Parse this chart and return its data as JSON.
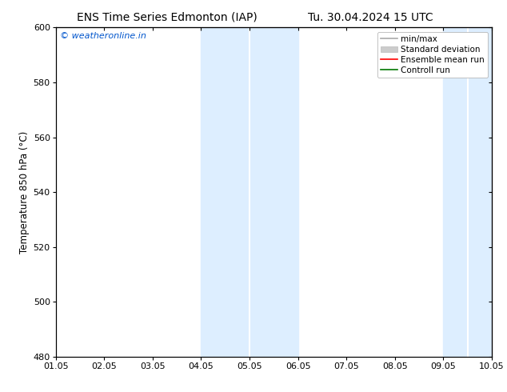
{
  "title_left": "ENS Time Series Edmonton (IAP)",
  "title_right": "Tu. 30.04.2024 15 UTC",
  "ylabel": "Temperature 850 hPa (°C)",
  "xlabel_ticks": [
    "01.05",
    "02.05",
    "03.05",
    "04.05",
    "05.05",
    "06.05",
    "07.05",
    "08.05",
    "09.05",
    "10.05"
  ],
  "ylim": [
    480,
    600
  ],
  "xlim": [
    0,
    9
  ],
  "yticks": [
    480,
    500,
    520,
    540,
    560,
    580,
    600
  ],
  "bg_color": "#ffffff",
  "plot_bg_color": "#ffffff",
  "shaded_bands": [
    {
      "x_start": 3,
      "x_end": 4,
      "color": "#ddeeff"
    },
    {
      "x_start": 4,
      "x_end": 5,
      "color": "#ddeeff"
    },
    {
      "x_start": 8,
      "x_end": 8.5,
      "color": "#ddeeff"
    },
    {
      "x_start": 8.5,
      "x_end": 9,
      "color": "#ddeeff"
    }
  ],
  "watermark_text": "© weatheronline.in",
  "watermark_color": "#0055cc",
  "legend_entries": [
    {
      "label": "min/max",
      "color": "#aaaaaa",
      "lw": 1.2
    },
    {
      "label": "Standard deviation",
      "color": "#cccccc",
      "lw": 5
    },
    {
      "label": "Ensemble mean run",
      "color": "#ff0000",
      "lw": 1.2
    },
    {
      "label": "Controll run",
      "color": "#007700",
      "lw": 1.2
    }
  ],
  "font_size_title": 10,
  "font_size_ticks": 8,
  "font_size_legend": 7.5,
  "font_size_ylabel": 8.5,
  "font_size_watermark": 8,
  "grid_color": "#dddddd",
  "spine_color": "#000000",
  "tick_color": "#555555"
}
